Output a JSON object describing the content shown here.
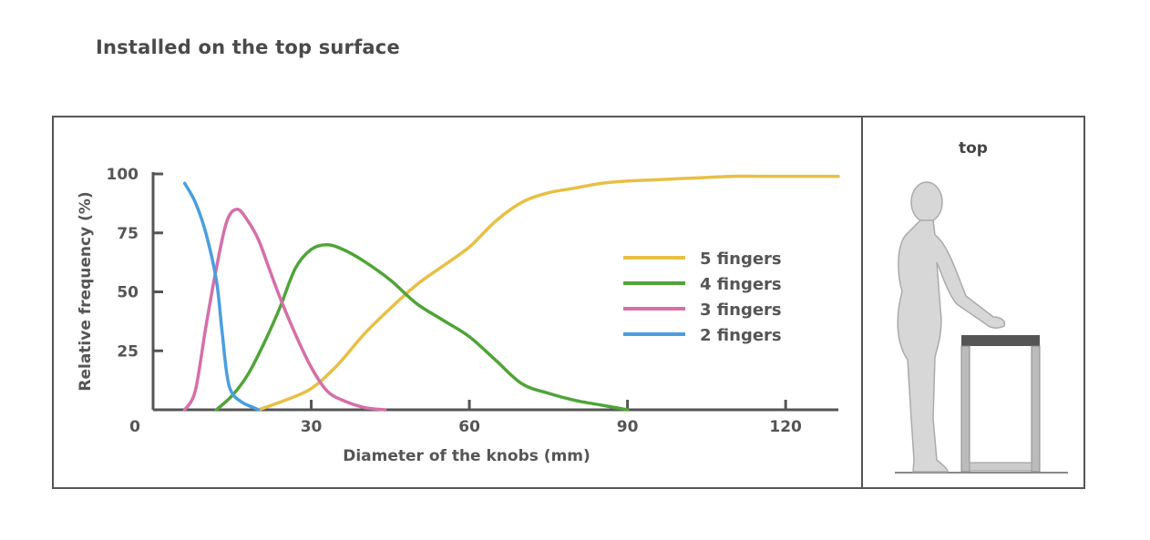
{
  "header": {
    "title": "Installed on the top surface"
  },
  "side_panel": {
    "label": "top"
  },
  "chart_data": {
    "type": "line",
    "xlabel": "Diameter of the knobs (mm)",
    "ylabel": "Relative frequency (%)",
    "xlim": [
      0,
      130
    ],
    "ylim": [
      0,
      100
    ],
    "xticks": [
      0,
      30,
      60,
      90,
      120
    ],
    "yticks": [
      25,
      50,
      75,
      100
    ],
    "legend_position": "right",
    "series": [
      {
        "name": "5 fingers",
        "color": "#e8bf45",
        "x": [
          20,
          25,
          30,
          35,
          40,
          45,
          50,
          55,
          60,
          65,
          70,
          75,
          80,
          85,
          90,
          95,
          100,
          105,
          110,
          115,
          120,
          125,
          130
        ],
        "y": [
          0,
          4,
          9,
          19,
          32,
          43,
          53,
          61,
          69,
          80,
          88,
          92,
          94,
          96,
          97,
          97.5,
          98,
          98.5,
          99,
          99,
          99,
          99,
          99
        ]
      },
      {
        "name": "4 fingers",
        "color": "#4fa437",
        "x": [
          12,
          15,
          18,
          21,
          24,
          27,
          30,
          33,
          36,
          40,
          45,
          50,
          55,
          60,
          65,
          70,
          75,
          80,
          85,
          90
        ],
        "y": [
          0,
          6,
          15,
          28,
          43,
          60,
          68,
          70,
          68,
          63,
          55,
          45,
          38,
          31,
          21,
          11,
          7,
          4,
          2,
          0
        ]
      },
      {
        "name": "3 fingers",
        "color": "#d56fa8",
        "x": [
          6,
          8,
          10,
          12,
          14,
          16,
          18,
          20,
          22,
          24,
          27,
          30,
          33,
          36,
          40,
          44
        ],
        "y": [
          0,
          8,
          35,
          60,
          80,
          85,
          80,
          72,
          60,
          48,
          32,
          18,
          8,
          4,
          1,
          0
        ]
      },
      {
        "name": "2 fingers",
        "color": "#4a9ee0",
        "x": [
          6,
          8,
          10,
          12,
          13,
          14,
          15,
          17,
          19,
          20
        ],
        "y": [
          96,
          88,
          75,
          55,
          35,
          15,
          7,
          3,
          1,
          0
        ]
      }
    ]
  }
}
